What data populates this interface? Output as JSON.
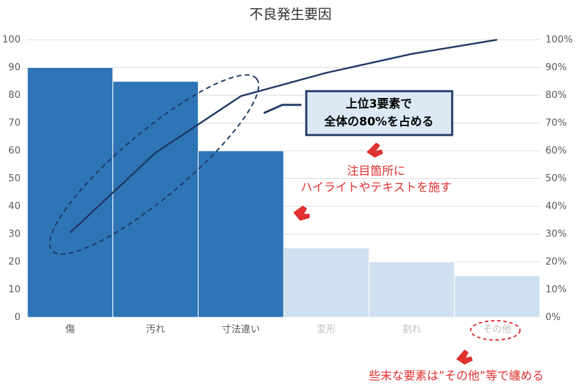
{
  "chart_data": {
    "type": "pareto",
    "title": "不良発生要因",
    "categories": [
      "傷",
      "汚れ",
      "寸法違い",
      "変形",
      "割れ",
      "その他"
    ],
    "series": [
      {
        "type": "bar",
        "colors": [
          "#2e75b6",
          "#2e75b6",
          "#2e75b6",
          "#cfe0f0",
          "#cfe0f0",
          "#cfe0f0"
        ],
        "values": [
          90,
          85,
          60,
          25,
          20,
          15
        ]
      },
      {
        "type": "line",
        "axis": "y2",
        "color": "#1f3864",
        "values": [
          30.5,
          59.3,
          79.7,
          88.1,
          94.9,
          100
        ]
      }
    ],
    "ylim": [
      0,
      100
    ],
    "yticks": [
      0,
      10,
      20,
      30,
      40,
      50,
      60,
      70,
      80,
      90,
      100
    ],
    "y2lim": [
      0,
      100
    ],
    "y2ticks": [
      {
        "value": 0,
        "label": "0%"
      },
      {
        "value": 10,
        "label": "10%"
      },
      {
        "value": 20,
        "label": "20%"
      },
      {
        "value": 30,
        "label": "30%"
      },
      {
        "value": 40,
        "label": "40%"
      },
      {
        "value": 50,
        "label": "50%"
      },
      {
        "value": 60,
        "label": "60%"
      },
      {
        "value": 70,
        "label": "70%"
      },
      {
        "value": 80,
        "label": "80%"
      },
      {
        "value": 90,
        "label": "90%"
      },
      {
        "value": 100,
        "label": "100%"
      }
    ],
    "grid": true,
    "annotations": [
      {
        "lines": [
          "上位3要素で",
          "全体の80%を占める"
        ]
      },
      {
        "lines": [
          "注目箇所に",
          "ハイライトやテキストを施す"
        ]
      },
      {
        "lines": [
          "些末な要素は”その他”等で纏める"
        ]
      }
    ]
  }
}
